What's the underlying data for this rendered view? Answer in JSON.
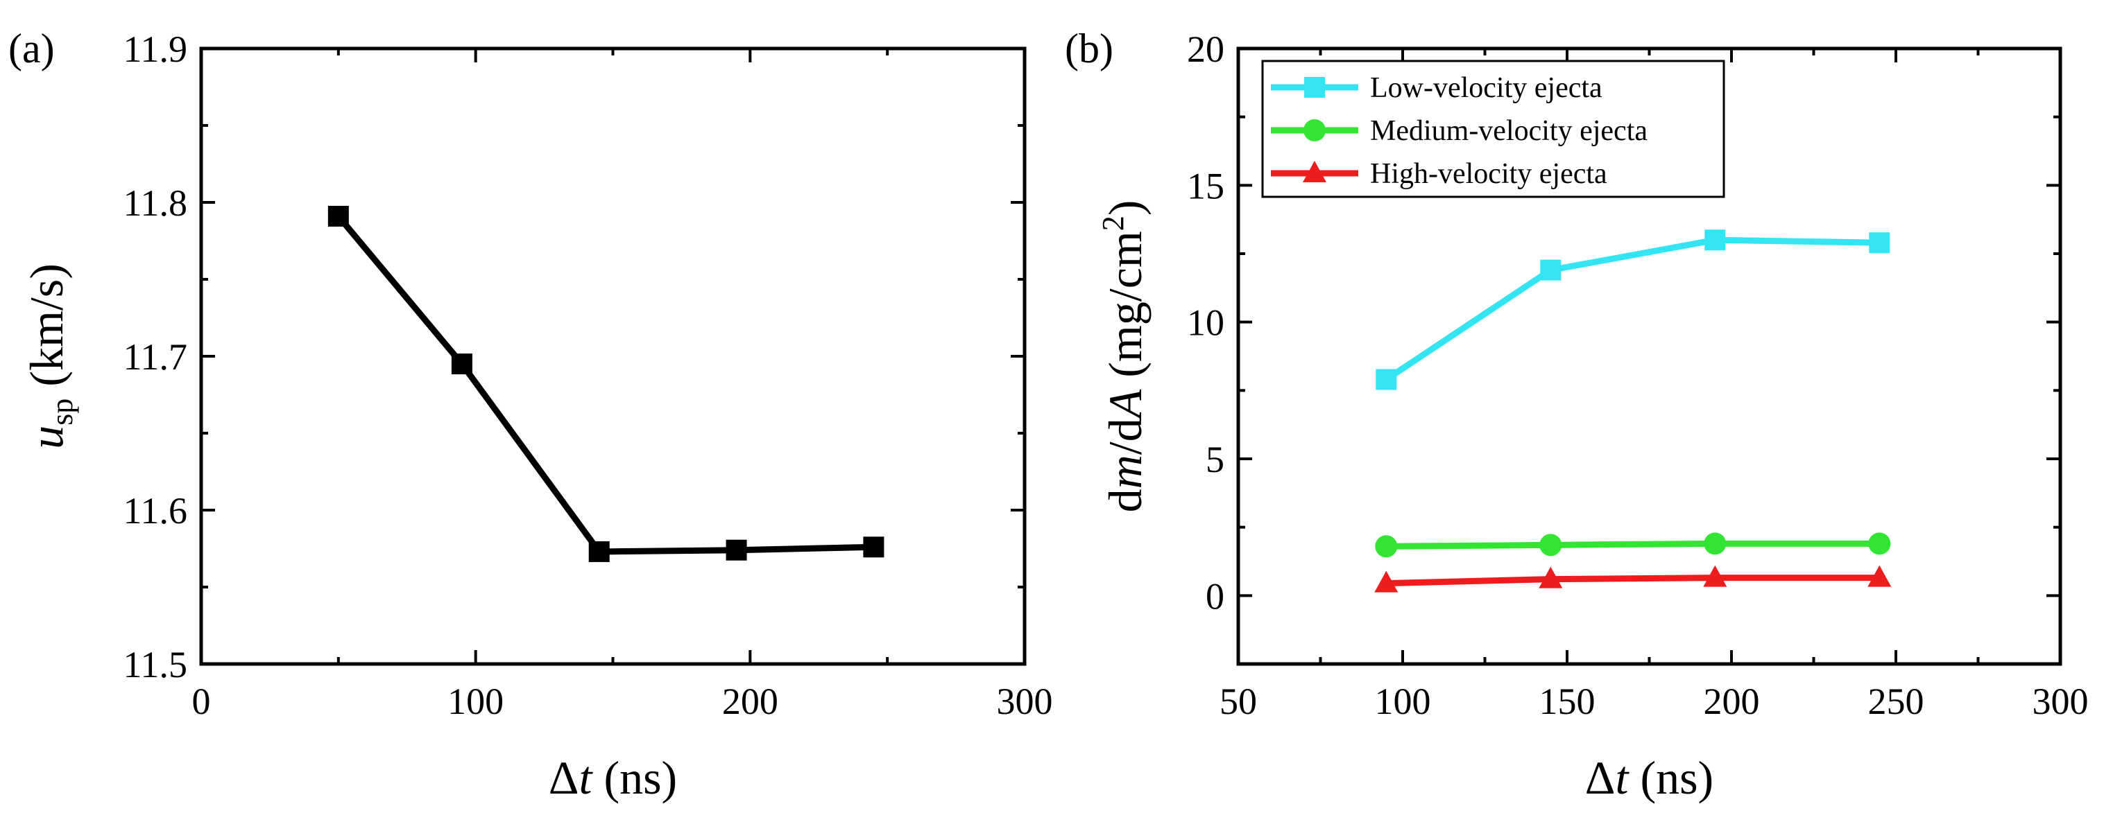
{
  "chart_data": [
    {
      "type": "line",
      "panel_label": "(a)",
      "xlabel": {
        "prefix": "Δ",
        "var": "t",
        "suffix": " (ns)"
      },
      "ylabel": {
        "var": "u",
        "sub": "sp",
        "suffix": " (km/s)"
      },
      "xlim": [
        0,
        300
      ],
      "ylim": [
        11.5,
        11.9
      ],
      "xticks": [
        "0",
        "100",
        "200",
        "300"
      ],
      "yticks": [
        "11.5",
        "11.6",
        "11.7",
        "11.8",
        "11.9"
      ],
      "grid": false,
      "series": [
        {
          "color": "#000000",
          "marker": "square",
          "x": [
            50,
            95,
            145,
            195,
            245
          ],
          "y": [
            11.791,
            11.695,
            11.573,
            11.574,
            11.576
          ]
        }
      ]
    },
    {
      "type": "line",
      "panel_label": "(b)",
      "xlabel": {
        "prefix": "Δ",
        "var": "t",
        "suffix": " (ns)"
      },
      "ylabel": {
        "prefix": "d",
        "var": "m",
        "mid": "/d",
        "var2": "A",
        "suffix": " (mg/cm",
        "sup": "2",
        "end": ")"
      },
      "xlim": [
        50,
        300
      ],
      "ylim": [
        -2.5,
        20
      ],
      "xticks": [
        "50",
        "100",
        "150",
        "200",
        "250",
        "300"
      ],
      "yticks": [
        "0",
        "5",
        "10",
        "15",
        "20"
      ],
      "grid": false,
      "legend_position": "top-left",
      "series": [
        {
          "name": "Low-velocity ejecta",
          "color": "#33e5f2",
          "marker": "square",
          "x": [
            95,
            145,
            195,
            245
          ],
          "y": [
            7.9,
            11.9,
            13.0,
            12.9
          ]
        },
        {
          "name": "Medium-velocity ejecta",
          "color": "#33e533",
          "marker": "circle",
          "x": [
            95,
            145,
            195,
            245
          ],
          "y": [
            1.8,
            1.85,
            1.9,
            1.9
          ]
        },
        {
          "name": "High-velocity ejecta",
          "color": "#ee1c1c",
          "marker": "triangle",
          "x": [
            95,
            145,
            195,
            245
          ],
          "y": [
            0.45,
            0.6,
            0.65,
            0.65
          ]
        }
      ]
    }
  ]
}
